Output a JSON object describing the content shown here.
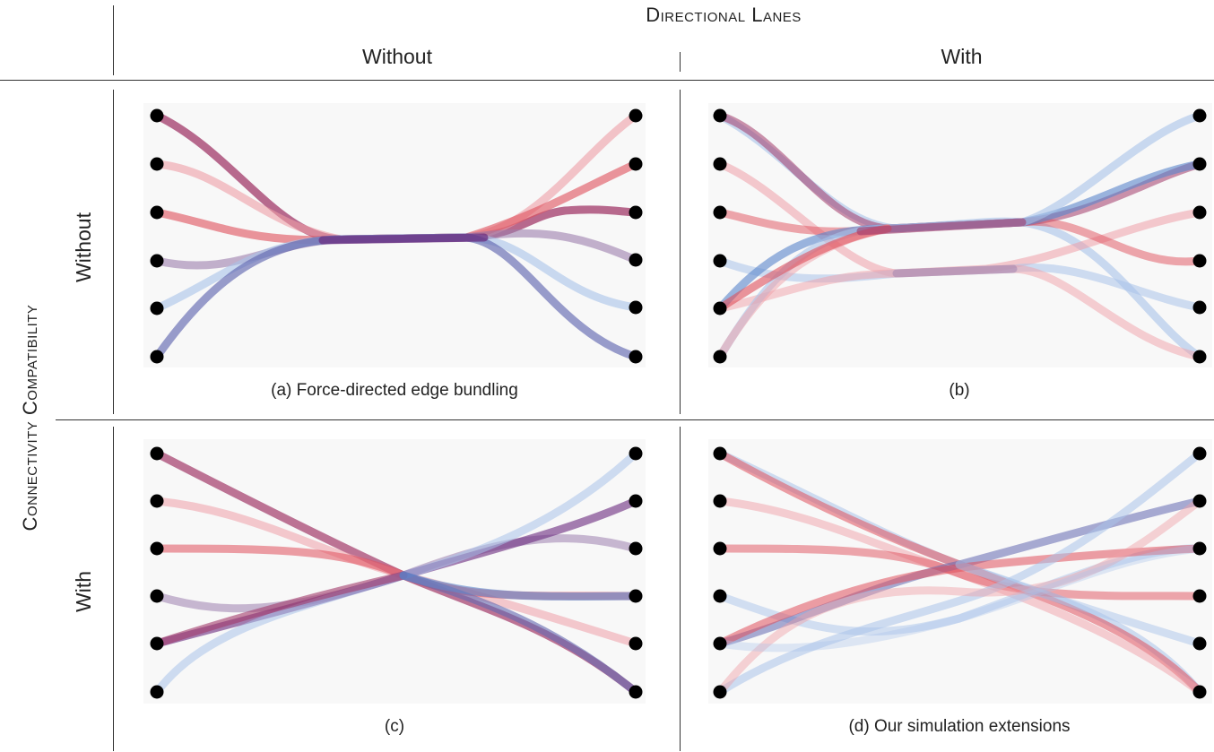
{
  "header": {
    "group_title": "Directional Lanes",
    "col_without": "Without",
    "col_with": "With"
  },
  "side": {
    "group_title": "Connectivity Compatibility",
    "row_without": "Without",
    "row_with": "With"
  },
  "panels": [
    {
      "id": "a",
      "caption": "(a)  Force-directed edge bundling"
    },
    {
      "id": "b",
      "caption": "(b)"
    },
    {
      "id": "c",
      "caption": "(c)"
    },
    {
      "id": "d",
      "caption": "(d)  Our simulation extensions"
    }
  ],
  "colors": {
    "red": "#e0505c",
    "pink": "#ef9fa7",
    "maroon": "#a23a6a",
    "purple": "#6a2a7e",
    "mauve": "#9c7fae",
    "blue": "#5a86cc",
    "lightblue": "#a9c3ea",
    "indigo": "#6268b0",
    "node": "#000000"
  }
}
